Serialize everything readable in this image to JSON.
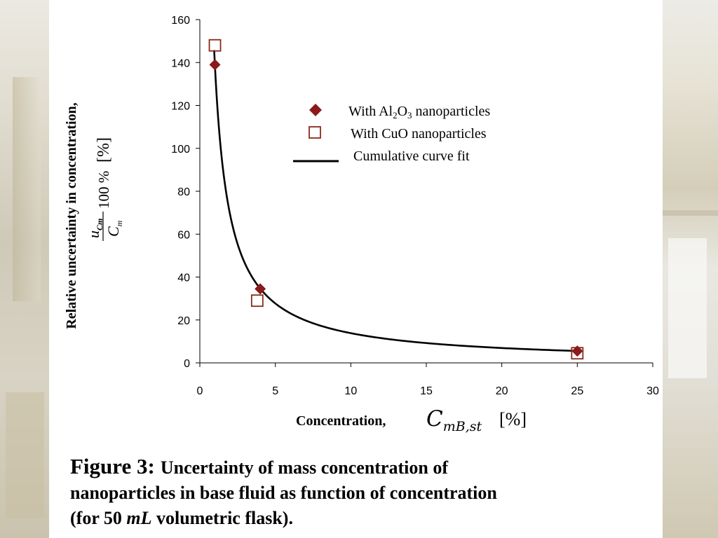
{
  "chart_data": {
    "type": "scatter",
    "xlim": [
      0,
      30
    ],
    "ylim": [
      0,
      160
    ],
    "x_ticks": [
      "0",
      "5",
      "10",
      "15",
      "20",
      "25",
      "30"
    ],
    "y_ticks": [
      "0",
      "20",
      "40",
      "60",
      "80",
      "100",
      "120",
      "140",
      "160"
    ],
    "x_tick_values": [
      0,
      5,
      10,
      15,
      20,
      25,
      30
    ],
    "y_tick_values": [
      0,
      20,
      40,
      60,
      80,
      100,
      120,
      140,
      160
    ],
    "xlabel": "Concentration,",
    "xlabel_symbol": "C",
    "xlabel_subscript": "mB,st",
    "xlabel_unit": "[%]",
    "ylabel": "Relative uncertainty in concentration,",
    "ylabel_formula_num": "u",
    "ylabel_formula_num_sub": "Cm",
    "ylabel_formula_den": "C",
    "ylabel_formula_den_sub": "m",
    "ylabel_formula_factor": "100 %",
    "ylabel_unit": "[%]",
    "legend": {
      "placement": "top-center",
      "al2o3_prefix": "With Al",
      "al2o3_sub1": "2",
      "al2o3_mid": "O",
      "al2o3_sub2": "3",
      "al2o3_suffix": " nanoparticles",
      "cuo": "With CuO nanoparticles",
      "fit": "Cumulative curve fit"
    },
    "series": [
      {
        "name": "With Al2O3 nanoparticles",
        "marker": "filled-diamond",
        "color": "#8b1a1a",
        "points": [
          [
            1,
            139
          ],
          [
            4,
            34.5
          ],
          [
            25,
            5.5
          ]
        ]
      },
      {
        "name": "With CuO nanoparticles",
        "marker": "open-square",
        "color": "#8b2a1a",
        "points": [
          [
            1,
            148
          ],
          [
            3.8,
            29
          ],
          [
            25,
            4.5
          ]
        ]
      },
      {
        "name": "Cumulative curve fit",
        "marker": "line",
        "color": "#000000",
        "fit_a": 138.5,
        "fit_b": -1,
        "x_range": [
          0.95,
          25
        ]
      }
    ],
    "grid": false
  },
  "caption": {
    "lead": "Figure 3:",
    "line1": "Uncertainty of mass concentration of",
    "line2": "nanoparticles in base fluid as function of concentration",
    "line3_prefix": "(for 50 ",
    "line3_italic": "mL",
    "line3_suffix": " volumetric flask)."
  },
  "colors": {
    "panel": "#ffffff",
    "marker": "#8b1a1a",
    "curve": "#000000"
  }
}
